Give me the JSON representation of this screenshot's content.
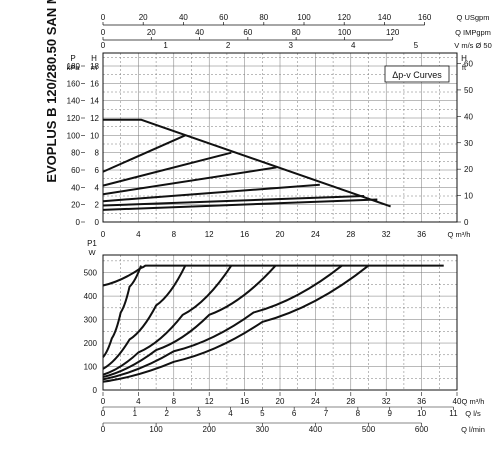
{
  "side_title": "EVOPLUS B 120/280.50 SAN M",
  "legend_box": "Δp-v Curves",
  "top_scales": [
    {
      "unit": "Q USgpm",
      "ticks": [
        "0",
        "20",
        "40",
        "60",
        "80",
        "100",
        "120",
        "140",
        "160"
      ]
    },
    {
      "unit": "Q IMPgpm",
      "ticks": [
        "0",
        "20",
        "40",
        "60",
        "80",
        "100",
        "120"
      ]
    },
    {
      "unit": "V m/s Ø 50",
      "ticks": [
        "0",
        "1",
        "2",
        "3",
        "4",
        "5"
      ]
    }
  ],
  "bottom_scales": [
    {
      "unit": "Q m³/h",
      "ticks": [
        "0",
        "4",
        "8",
        "12",
        "16",
        "20",
        "24",
        "28",
        "32",
        "36",
        "40"
      ]
    },
    {
      "unit": "Q l/s",
      "ticks": [
        "0",
        "1",
        "2",
        "3",
        "4",
        "5",
        "6",
        "7",
        "8",
        "9",
        "10",
        "11"
      ]
    },
    {
      "unit": "Q l/min",
      "ticks": [
        "0",
        "100",
        "200",
        "300",
        "400",
        "500",
        "600"
      ]
    }
  ],
  "chart_data": [
    {
      "type": "line",
      "title": "Δp-v Curves",
      "xlabel": "Q m³/h",
      "x_ticks": [
        "0",
        "4",
        "8",
        "12",
        "16",
        "20",
        "24",
        "28",
        "32",
        "36"
      ],
      "xlim": [
        0,
        40
      ],
      "ylabel_left_1": "P kPa",
      "ylabel_left_2": "H m",
      "ylabel_right": "H ft",
      "y_ticks_kpa": [
        "0",
        "20",
        "40",
        "60",
        "80",
        "100",
        "120",
        "140",
        "160",
        "180"
      ],
      "y_ticks_m": [
        "0",
        "2",
        "4",
        "6",
        "8",
        "10",
        "12",
        "14",
        "16",
        "18"
      ],
      "y_ticks_ft": [
        "0",
        "10",
        "20",
        "30",
        "40",
        "50",
        "60"
      ],
      "ylim_m": [
        0,
        19.5
      ],
      "grid": true,
      "series": [
        {
          "x": [
            0,
            4.3,
            32.5
          ],
          "y": [
            11.8,
            11.8,
            1.8
          ]
        },
        {
          "x": [
            0,
            9.3
          ],
          "y": [
            5.8,
            10.0
          ]
        },
        {
          "x": [
            0,
            14.5
          ],
          "y": [
            4.2,
            8.0
          ]
        },
        {
          "x": [
            0,
            19.6
          ],
          "y": [
            3.2,
            6.3
          ]
        },
        {
          "x": [
            0,
            24.5
          ],
          "y": [
            2.4,
            4.3
          ]
        },
        {
          "x": [
            0,
            29.5
          ],
          "y": [
            1.9,
            3.0
          ]
        },
        {
          "x": [
            0,
            31.0
          ],
          "y": [
            1.4,
            2.6
          ]
        }
      ]
    },
    {
      "type": "line",
      "xlabel": "Q m³/h",
      "ylabel": "P1 W",
      "x_ticks": [
        "0",
        "4",
        "8",
        "12",
        "16",
        "20",
        "24",
        "28",
        "32",
        "36"
      ],
      "xlim": [
        0,
        40
      ],
      "y_ticks": [
        "0",
        "100",
        "200",
        "300",
        "400",
        "500"
      ],
      "ylim": [
        0,
        575
      ],
      "grid": true,
      "series": [
        {
          "x": [
            0,
            4.3,
            4.8,
            38.5
          ],
          "y": [
            445,
            520,
            530,
            530
          ]
        },
        {
          "x": [
            0,
            1,
            2,
            3,
            4.3
          ],
          "y": [
            140,
            220,
            330,
            440,
            530
          ]
        },
        {
          "x": [
            0,
            3,
            6,
            9.3
          ],
          "y": [
            90,
            215,
            360,
            530
          ]
        },
        {
          "x": [
            0,
            4,
            9,
            14.5
          ],
          "y": [
            65,
            160,
            320,
            530
          ]
        },
        {
          "x": [
            0,
            6,
            12,
            19.5
          ],
          "y": [
            55,
            170,
            320,
            530
          ]
        },
        {
          "x": [
            0,
            8,
            17,
            27.0
          ],
          "y": [
            45,
            165,
            330,
            530
          ]
        },
        {
          "x": [
            0,
            8,
            18,
            30.0
          ],
          "y": [
            35,
            120,
            290,
            530
          ]
        }
      ]
    }
  ]
}
